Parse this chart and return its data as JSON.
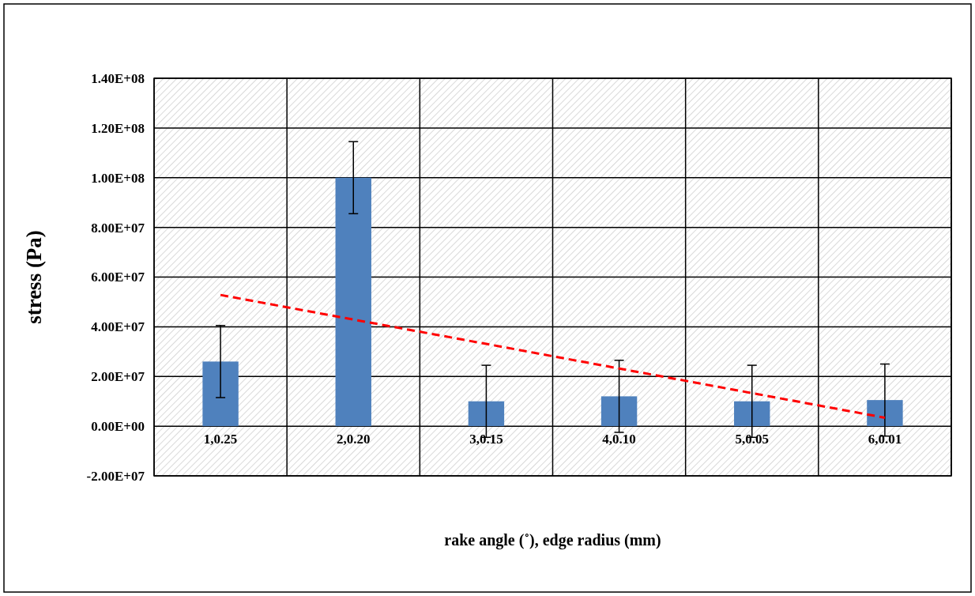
{
  "chart_data": {
    "type": "bar",
    "xlabel": "rake angle (˚), edge radius (mm)",
    "ylabel": "stress (Pa)",
    "categories": [
      "1,0.25",
      "2,0.20",
      "3,0.15",
      "4,0.10",
      "5,0.05",
      "6,0.01"
    ],
    "series": [
      {
        "color": "#4f81bd",
        "values": [
          26000000,
          100000000,
          10000000,
          12000000,
          10000000,
          10500000
        ],
        "errors": [
          14500000,
          14500000,
          14500000,
          14500000,
          14500000,
          14500000
        ]
      },
      {
        "type": "line",
        "color": "#ff0000",
        "line_style": "dashed",
        "values": [
          52800000,
          42900000,
          33100000,
          23200000,
          13300000,
          3400000
        ]
      }
    ],
    "ylim": [
      -20000000,
      140000000
    ],
    "yticks": [
      {
        "value": -20000000,
        "label": "-2.00E+07"
      },
      {
        "value": 0,
        "label": "0.00E+00"
      },
      {
        "value": 20000000,
        "label": "2.00E+07"
      },
      {
        "value": 40000000,
        "label": "4.00E+07"
      },
      {
        "value": 60000000,
        "label": "6.00E+07"
      },
      {
        "value": 80000000,
        "label": "8.00E+07"
      },
      {
        "value": 100000000,
        "label": "1.00E+08"
      },
      {
        "value": 120000000,
        "label": "1.20E+08"
      },
      {
        "value": 140000000,
        "label": "1.40E+08"
      }
    ],
    "grid": true
  }
}
